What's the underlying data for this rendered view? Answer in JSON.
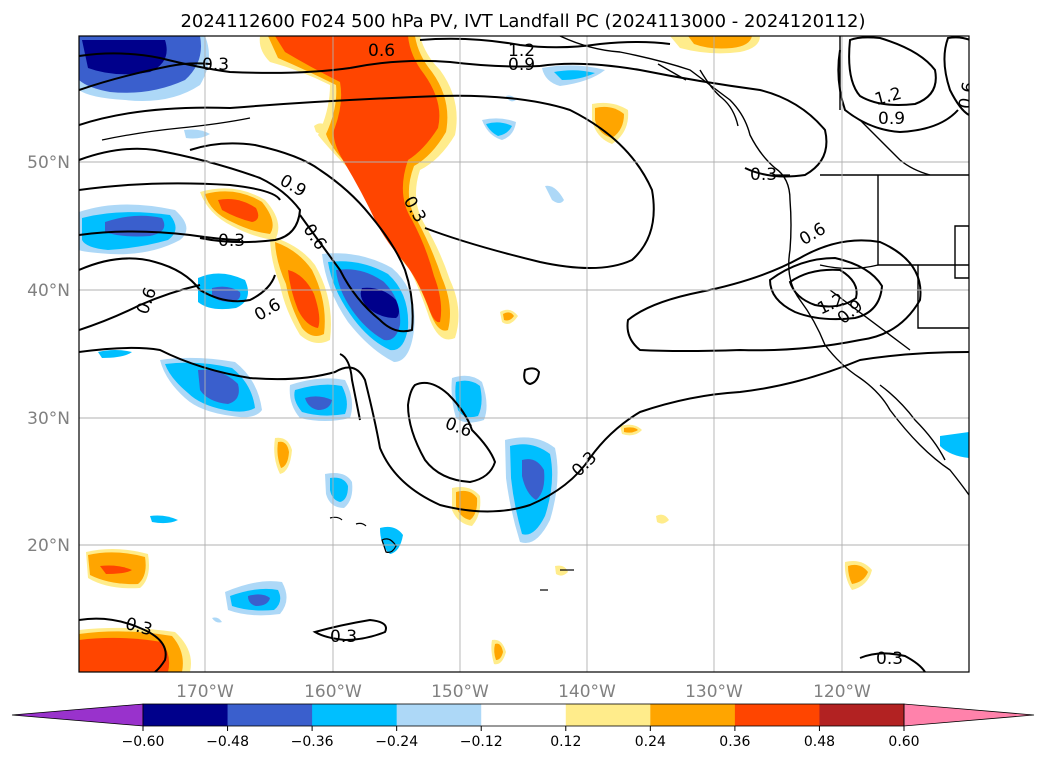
{
  "title": "2024112600 F024 500 hPa PV, IVT Landfall PC (2024113000 - 2024120112)",
  "lat_ticks": [
    "50°N",
    "40°N",
    "30°N",
    "20°N"
  ],
  "lon_ticks": [
    "170°W",
    "160°W",
    "150°W",
    "140°W",
    "130°W",
    "120°W"
  ],
  "colorbar": {
    "colors": [
      "#9932cc",
      "#00008b",
      "#3a5fcd",
      "#00bfff",
      "#add8f7",
      "#ffffff",
      "#ffec8b",
      "#ffa500",
      "#ff4500",
      "#b22222",
      "#ff82ab"
    ],
    "tick_labels": [
      "−0.60",
      "−0.48",
      "−0.36",
      "−0.24",
      "−0.12",
      "0.12",
      "0.24",
      "0.36",
      "0.48",
      "0.60"
    ]
  },
  "contour_labels": [
    "1.2",
    "0.9",
    "0.6",
    "0.3",
    "0.3",
    "0.9",
    "0.6",
    "0.3",
    "0.6",
    "0.6",
    "0.6",
    "0.3",
    "0.6",
    "1.2",
    "0.9",
    "0.3",
    "1.2",
    "0.9",
    "0.6",
    "0.3",
    "0.3"
  ]
}
